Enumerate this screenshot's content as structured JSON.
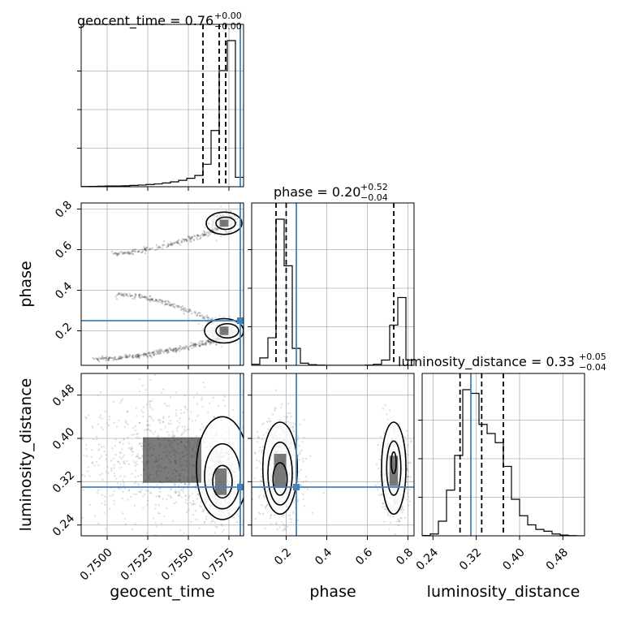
{
  "chart_data": {
    "type": "corner",
    "parameters": [
      "geocent_time",
      "phase",
      "luminosity_distance"
    ],
    "truth": {
      "geocent_time": 0.7582,
      "phase": 0.25,
      "luminosity_distance": 0.31
    },
    "colors": {
      "truth": "#4682b4",
      "hist": "#000000",
      "grid": "#b0b0b0"
    },
    "grid": true,
    "titles": [
      {
        "param": "geocent_time",
        "prefix": "geocent_time = 0.76",
        "plus": "+0.00",
        "minus": "−0.00"
      },
      {
        "param": "phase",
        "prefix": "phase = 0.20",
        "plus": "+0.52",
        "minus": "−0.04"
      },
      {
        "param": "luminosity_distance",
        "prefix": "luminosity_distance = 0.33",
        "plus": "+0.05",
        "minus": "−0.04"
      }
    ],
    "axes": {
      "geocent_time": {
        "range": [
          0.7484,
          0.7584
        ],
        "ticks": [
          0.75,
          0.7525,
          0.755,
          0.7575
        ],
        "tick_labels": [
          "0.7500",
          "0.7525",
          "0.7550",
          "0.7575"
        ],
        "label": "geocent_time"
      },
      "phase": {
        "range": [
          0.03,
          0.83
        ],
        "ticks": [
          0.2,
          0.4,
          0.6,
          0.8
        ],
        "tick_labels": [
          "0.2",
          "0.4",
          "0.6",
          "0.8"
        ],
        "label": "phase"
      },
      "luminosity_distance": {
        "range": [
          0.22,
          0.52
        ],
        "ticks": [
          0.24,
          0.32,
          0.4,
          0.48
        ],
        "tick_labels": [
          "0.24",
          "0.32",
          "0.40",
          "0.48"
        ],
        "label": "luminosity_distance"
      }
    },
    "quantile_lines": {
      "geocent_time": [
        0.7559,
        0.7569,
        0.7573
      ],
      "phase": [
        0.15,
        0.2,
        0.73
      ],
      "luminosity_distance": [
        0.29,
        0.33,
        0.37
      ]
    },
    "histograms": {
      "geocent_time": {
        "edges": [
          0.7484,
          0.7489,
          0.7494,
          0.7499,
          0.7504,
          0.7509,
          0.7514,
          0.7519,
          0.7524,
          0.7529,
          0.7534,
          0.7539,
          0.7544,
          0.7549,
          0.7554,
          0.7559,
          0.7564,
          0.7569,
          0.7574,
          0.7579,
          0.7584
        ],
        "counts": [
          0.1,
          0.2,
          0.3,
          0.4,
          0.4,
          0.5,
          0.7,
          0.9,
          1.2,
          1.5,
          2.0,
          2.6,
          3.4,
          4.5,
          6.0,
          12.0,
          30.0,
          62.0,
          78.0,
          5.0
        ]
      },
      "phase": {
        "edges": [
          0.03,
          0.07,
          0.11,
          0.15,
          0.19,
          0.23,
          0.27,
          0.31,
          0.35,
          0.39,
          0.43,
          0.47,
          0.51,
          0.55,
          0.59,
          0.63,
          0.67,
          0.71,
          0.75,
          0.79,
          0.83
        ],
        "counts": [
          0.5,
          3.5,
          13.0,
          69.0,
          47.0,
          8.0,
          1.0,
          0.3,
          0.1,
          0.0,
          0.0,
          0.0,
          0.0,
          0.0,
          0.1,
          0.5,
          2.5,
          19.0,
          32.0,
          2.5
        ]
      },
      "luminosity_distance": {
        "edges": [
          0.22,
          0.235,
          0.25,
          0.265,
          0.28,
          0.295,
          0.31,
          0.325,
          0.34,
          0.355,
          0.37,
          0.385,
          0.4,
          0.415,
          0.43,
          0.445,
          0.46,
          0.475,
          0.49,
          0.505,
          0.52
        ],
        "counts": [
          0.2,
          1.0,
          8.0,
          25.0,
          44.0,
          80.0,
          78.0,
          61.0,
          56.0,
          51.0,
          38.0,
          20.0,
          11.0,
          6.0,
          3.5,
          2.5,
          1.0,
          0.4,
          0.1,
          0.0
        ]
      }
    },
    "samples_2d": {
      "phase_vs_geocent_time": {
        "x": "geocent_time",
        "y": "phase",
        "blobs": [
          {
            "x": 0.7572,
            "y": 0.2,
            "sx": 0.00045,
            "sy": 0.03,
            "n": 260
          },
          {
            "x": 0.7572,
            "y": 0.73,
            "sx": 0.00045,
            "sy": 0.025,
            "n": 200
          }
        ],
        "filaments": [
          {
            "x0": 0.7493,
            "y0": 0.06,
            "x1": 0.757,
            "y1": 0.16,
            "n": 320
          },
          {
            "x0": 0.7506,
            "y0": 0.38,
            "x1": 0.7568,
            "y1": 0.24,
            "n": 180
          },
          {
            "x0": 0.7504,
            "y0": 0.58,
            "x1": 0.7568,
            "y1": 0.7,
            "n": 200
          }
        ],
        "contours": [
          {
            "cx": 0.7572,
            "cy": 0.2,
            "rx": 0.0012,
            "ry": 0.06
          },
          {
            "cx": 0.7574,
            "cy": 0.2,
            "rx": 0.0007,
            "ry": 0.035
          },
          {
            "cx": 0.7572,
            "cy": 0.73,
            "rx": 0.0011,
            "ry": 0.055
          },
          {
            "cx": 0.7573,
            "cy": 0.73,
            "rx": 0.0006,
            "ry": 0.03
          }
        ]
      },
      "luminosity_distance_vs_geocent_time": {
        "x": "geocent_time",
        "y": "luminosity_distance",
        "blobs": [
          {
            "x": 0.757,
            "y": 0.32,
            "sx": 0.0006,
            "sy": 0.035,
            "n": 600
          },
          {
            "x": 0.754,
            "y": 0.36,
            "sx": 0.003,
            "sy": 0.06,
            "n": 900
          }
        ],
        "filaments": [],
        "contours": [
          {
            "cx": 0.7571,
            "cy": 0.345,
            "rx": 0.0016,
            "ry": 0.095
          },
          {
            "cx": 0.7571,
            "cy": 0.33,
            "rx": 0.0011,
            "ry": 0.06
          },
          {
            "cx": 0.7571,
            "cy": 0.32,
            "rx": 0.0006,
            "ry": 0.03
          }
        ]
      },
      "luminosity_distance_vs_phase": {
        "x": "phase",
        "y": "luminosity_distance",
        "blobs": [
          {
            "x": 0.17,
            "y": 0.34,
            "sx": 0.05,
            "sy": 0.045,
            "n": 800
          },
          {
            "x": 0.73,
            "y": 0.34,
            "sx": 0.035,
            "sy": 0.04,
            "n": 550
          }
        ],
        "filaments": [],
        "contours": [
          {
            "cx": 0.17,
            "cy": 0.345,
            "rx": 0.085,
            "ry": 0.085
          },
          {
            "cx": 0.17,
            "cy": 0.335,
            "rx": 0.06,
            "ry": 0.058
          },
          {
            "cx": 0.17,
            "cy": 0.325,
            "rx": 0.035,
            "ry": 0.03
          },
          {
            "cx": 0.73,
            "cy": 0.345,
            "rx": 0.06,
            "ry": 0.085
          },
          {
            "cx": 0.73,
            "cy": 0.345,
            "rx": 0.035,
            "ry": 0.05
          },
          {
            "cx": 0.73,
            "cy": 0.355,
            "rx": 0.012,
            "ry": 0.02
          }
        ]
      }
    }
  }
}
